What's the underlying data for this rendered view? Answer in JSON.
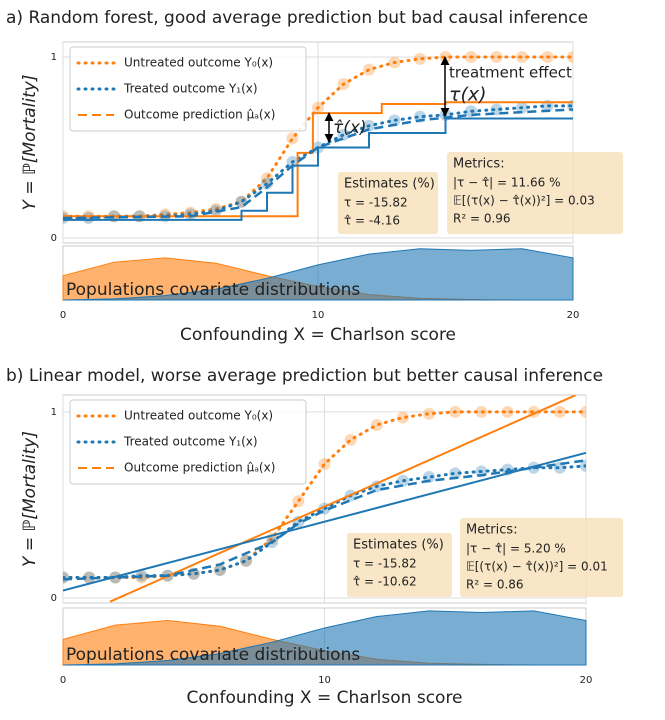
{
  "chart_data": [
    {
      "type": "line",
      "title": "a) Random forest, good average prediction but bad causal inference",
      "ylabel": "Y = ℙ[Mortality]",
      "xlabel": "Confounding X = Charlson score",
      "xlim": [
        0,
        20
      ],
      "xticks": [
        0,
        10,
        20
      ],
      "ylim": [
        -0.028,
        1.083
      ],
      "yticks": [
        0,
        1
      ],
      "grid": true,
      "legend": "upper left",
      "series": [
        {
          "name": "Untreated outcome Y₀(x)",
          "color": "#ff7f0e",
          "style": "dotted",
          "x": [
            0,
            1,
            2,
            3,
            4,
            5,
            6,
            7,
            8,
            9,
            10,
            11,
            12,
            13,
            14,
            15,
            16,
            17,
            18,
            19,
            20
          ],
          "values": [
            0.12,
            0.12,
            0.12,
            0.12,
            0.13,
            0.14,
            0.16,
            0.2,
            0.33,
            0.55,
            0.72,
            0.85,
            0.93,
            0.97,
            0.99,
            1,
            1,
            1,
            1,
            1,
            1
          ]
        },
        {
          "name": "Treated outcome Y₁(x)",
          "color": "#1f77b4",
          "style": "dotted",
          "x": [
            0,
            1,
            2,
            3,
            4,
            5,
            6,
            7,
            8,
            9,
            10,
            11,
            12,
            13,
            14,
            15,
            16,
            17,
            18,
            19,
            20
          ],
          "values": [
            0.11,
            0.11,
            0.12,
            0.12,
            0.12,
            0.13,
            0.15,
            0.2,
            0.3,
            0.42,
            0.5,
            0.57,
            0.62,
            0.65,
            0.67,
            0.68,
            0.7,
            0.71,
            0.72,
            0.73,
            0.73
          ]
        },
        {
          "name": "Outcome prediction μ̂ₐ(x)",
          "color": "#ff7f0e",
          "style": "dashed",
          "lines": [
            {
              "color": "#ff7f0e",
              "style": "solid",
              "x": [
                0,
                9.2,
                9.2,
                9.8,
                9.8,
                12.5,
                12.5,
                15,
                15,
                20
              ],
              "values": [
                0.12,
                0.12,
                0.47,
                0.47,
                0.69,
                0.69,
                0.74,
                0.74,
                0.75,
                0.75
              ]
            },
            {
              "color": "#1f77b4",
              "style": "solid",
              "x": [
                0,
                7,
                7,
                8,
                8,
                9,
                9,
                10,
                10,
                12,
                12,
                15,
                15,
                20
              ],
              "values": [
                0.1,
                0.1,
                0.15,
                0.15,
                0.25,
                0.25,
                0.4,
                0.4,
                0.5,
                0.5,
                0.58,
                0.58,
                0.66,
                0.66
              ]
            },
            {
              "color": "#1f77b4",
              "style": "dashed",
              "x": [
                0,
                5,
                7,
                8,
                9,
                10,
                12,
                14,
                16,
                20
              ],
              "values": [
                0.11,
                0.12,
                0.17,
                0.28,
                0.4,
                0.5,
                0.6,
                0.65,
                0.68,
                0.71
              ]
            }
          ]
        }
      ],
      "annotations": {
        "effect": [
          "treatment effect",
          "τ(x)"
        ],
        "effect_hat": "τ̂(x)"
      },
      "estimates": {
        "title": "Estimates (%)",
        "lines": [
          "τ = -15.82",
          "τ̂ = -4.16"
        ]
      },
      "metrics": {
        "title": "Metrics:",
        "lines": [
          "|τ − τ̂| = 11.66 %",
          "𝔼[(τ(x) − τ̂(x))²] = 0.03",
          "R² = 0.96"
        ]
      },
      "density": {
        "label": "Populations covariate distributions",
        "x": [
          0,
          2,
          4,
          6,
          8,
          10,
          12,
          14,
          16,
          18,
          20
        ],
        "series": [
          {
            "color": "#ff7f0e",
            "values": [
              0.45,
              0.7,
              0.78,
              0.68,
              0.45,
              0.25,
              0.1,
              0.03,
              0.01,
              0,
              0
            ]
          },
          {
            "color": "#1f77b4",
            "values": [
              0,
              0.02,
              0.08,
              0.2,
              0.4,
              0.65,
              0.85,
              0.95,
              0.92,
              0.95,
              0.78
            ]
          }
        ]
      }
    },
    {
      "type": "line",
      "title": "b) Linear model, worse average prediction but better causal inference",
      "ylabel": "Y = ℙ[Mortality]",
      "xlabel": "Confounding X = Charlson score",
      "xlim": [
        0,
        20
      ],
      "xticks": [
        0,
        10,
        20
      ],
      "ylim": [
        -0.027,
        1.091
      ],
      "yticks": [
        0,
        1
      ],
      "grid": true,
      "legend": "upper left",
      "series": [
        {
          "name": "Untreated outcome Y₀(x)",
          "color": "#ff7f0e",
          "style": "dotted",
          "x": [
            0,
            1,
            2,
            3,
            4,
            5,
            6,
            7,
            8,
            9,
            10,
            11,
            12,
            13,
            14,
            15,
            16,
            17,
            18,
            19,
            20
          ],
          "values": [
            0.11,
            0.11,
            0.11,
            0.11,
            0.12,
            0.13,
            0.15,
            0.2,
            0.32,
            0.52,
            0.72,
            0.85,
            0.93,
            0.97,
            0.99,
            1,
            1,
            1,
            1,
            1,
            1
          ]
        },
        {
          "name": "Treated outcome Y₁(x)",
          "color": "#1f77b4",
          "style": "dotted",
          "x": [
            0,
            1,
            2,
            3,
            4,
            5,
            6,
            7,
            8,
            9,
            10,
            11,
            12,
            13,
            14,
            15,
            16,
            17,
            18,
            19,
            20
          ],
          "values": [
            0.11,
            0.11,
            0.11,
            0.12,
            0.12,
            0.13,
            0.15,
            0.2,
            0.3,
            0.41,
            0.48,
            0.55,
            0.6,
            0.63,
            0.65,
            0.67,
            0.68,
            0.69,
            0.7,
            0.7,
            0.71
          ]
        },
        {
          "name": "Outcome prediction μ̂ₐ(x)",
          "color": "#ff7f0e",
          "style": "dashed",
          "lines": [
            {
              "color": "#ff7f0e",
              "style": "solid",
              "x": [
                1.8,
                19.6
              ],
              "values": [
                -0.02,
                1.09
              ]
            },
            {
              "color": "#1f77b4",
              "style": "solid",
              "x": [
                0,
                20
              ],
              "values": [
                0.04,
                0.78
              ]
            },
            {
              "color": "#1f77b4",
              "style": "dashed",
              "x": [
                0,
                4,
                6,
                8,
                9,
                10,
                12,
                14,
                16,
                20
              ],
              "values": [
                0.1,
                0.12,
                0.18,
                0.3,
                0.4,
                0.47,
                0.58,
                0.63,
                0.66,
                0.74
              ]
            }
          ]
        }
      ],
      "estimates": {
        "title": "Estimates (%)",
        "lines": [
          "τ = -15.82",
          "τ̂ = -10.62"
        ]
      },
      "metrics": {
        "title": "Metrics:",
        "lines": [
          "|τ − τ̂| = 5.20 %",
          "𝔼[(τ(x) − τ̂(x))²] = 0.01",
          "R² = 0.86"
        ]
      },
      "density": {
        "label": "Populations covariate distributions",
        "x": [
          0,
          2,
          4,
          6,
          8,
          10,
          12,
          14,
          16,
          18,
          20
        ],
        "series": [
          {
            "color": "#ff7f0e",
            "values": [
              0.45,
              0.7,
              0.78,
              0.68,
              0.45,
              0.25,
              0.1,
              0.03,
              0.01,
              0,
              0
            ]
          },
          {
            "color": "#1f77b4",
            "values": [
              0,
              0.02,
              0.08,
              0.2,
              0.4,
              0.65,
              0.85,
              0.95,
              0.92,
              0.95,
              0.78
            ]
          }
        ]
      }
    }
  ]
}
